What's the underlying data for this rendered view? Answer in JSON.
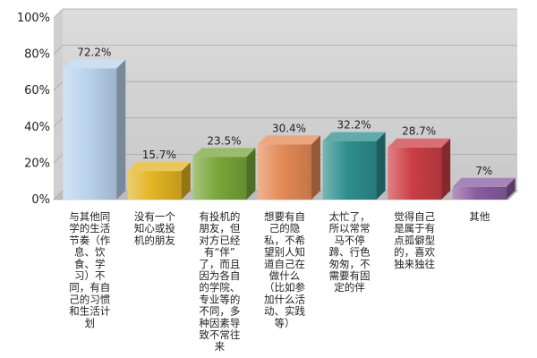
{
  "chart_data": {
    "type": "bar",
    "title": "",
    "xlabel": "",
    "ylabel": "",
    "ylim": [
      0,
      100
    ],
    "y_ticks": [
      "0%",
      "20%",
      "40%",
      "60%",
      "80%",
      "100%"
    ],
    "grid": true,
    "bar_style": "3d",
    "categories": [
      "与其他同学的生活节奏（作息、饮食、学习）不同，有自己的习惯和生活计划",
      "没有一个知心或投机的朋友",
      "有投机的朋友，但对方已经有“伴”了，而且因为各自的学院、专业等的不同，多种因素导致不常往来",
      "想要有自己的隐私，不希望别人知道自己在做什么（比如参加什么活动、实践等）",
      "太忙了，所以常常马不停蹄、行色匆匆，不需要有固定的伴",
      "觉得自己是属于有点孤僻型的，喜欢独来独往",
      "其他"
    ],
    "category_lines": [
      [
        "与其他同",
        "学的生活",
        "节奏（作",
        "息、饮",
        "食、学",
        "习）不",
        "同，有自",
        "己的习惯",
        "和生活计",
        "划"
      ],
      [
        "没有一个",
        "知心或投",
        "机的朋友"
      ],
      [
        "有投机的",
        "朋友，但",
        "对方已经",
        "有“伴”",
        "了，而且",
        "因为各自",
        "的学院、",
        "专业等的",
        "不同，多",
        "种因素导",
        "致不常往",
        "来"
      ],
      [
        "想要有自",
        "己的隐",
        "私，不希",
        "望别人知",
        "道自己在",
        "做什么",
        "（比如参",
        "加什么活",
        "动、实践",
        "等）"
      ],
      [
        "太忙了，",
        "所以常常",
        "马不停",
        "蹄、行色",
        "匆匆，不",
        "需要有固",
        "定的伴"
      ],
      [
        "觉得自己",
        "是属于有",
        "点孤僻型",
        "的，喜欢",
        "独来独往"
      ],
      [
        "其他"
      ]
    ],
    "values": [
      72.2,
      15.7,
      23.5,
      30.4,
      32.2,
      28.7,
      7
    ],
    "value_labels": [
      "72.2%",
      "15.7%",
      "23.5%",
      "30.4%",
      "32.2%",
      "28.7%",
      "7%"
    ],
    "colors": [
      "#b9d3ee",
      "#e3b422",
      "#78a73a",
      "#e58a55",
      "#2e8f8f",
      "#cc3e45",
      "#8a5ca0"
    ]
  }
}
